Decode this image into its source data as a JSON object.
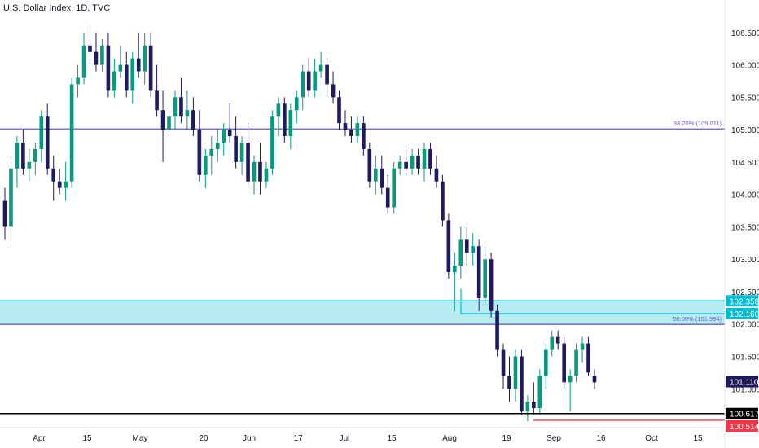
{
  "title": "U.S. Dollar Index, 1D, TVC",
  "chart_data": {
    "type": "candlestick",
    "title": "U.S. Dollar Index, 1D, TVC",
    "ylim": [
      100.4,
      107.0
    ],
    "y_ticks": [
      "106.500",
      "106.000",
      "105.500",
      "105.000",
      "104.500",
      "104.000",
      "103.500",
      "103.000",
      "102.500",
      "102.000",
      "101.500",
      "101.000"
    ],
    "x_ticks": [
      "Apr",
      "15",
      "May",
      "20",
      "Jun",
      "17",
      "Jul",
      "15",
      "Aug",
      "19",
      "Sep",
      "16",
      "Oct",
      "15"
    ],
    "colors": {
      "up": "#089981",
      "down": "#1e1a5e",
      "fib": "#6a5acd",
      "zone": "#00bcd4",
      "support": "#000000",
      "low": "#f23645"
    },
    "fib_levels": [
      {
        "label": "38.20% (105.011)",
        "value": 105.011
      },
      {
        "label": "50.00% (101.994)",
        "value": 101.994
      }
    ],
    "zone": {
      "upper": "102.358",
      "lower": "102.160"
    },
    "support_line": "100.617",
    "low_line": "100.514",
    "last_price": "101.110",
    "candles": [
      [
        103.9,
        104.1,
        103.3,
        103.5
      ],
      [
        103.5,
        104.5,
        103.2,
        104.4
      ],
      [
        104.4,
        104.9,
        104.1,
        104.8
      ],
      [
        104.8,
        105.0,
        104.3,
        104.4
      ],
      [
        104.4,
        104.7,
        104.2,
        104.5
      ],
      [
        104.5,
        104.8,
        104.3,
        104.7
      ],
      [
        104.7,
        105.3,
        104.5,
        105.2
      ],
      [
        105.2,
        105.4,
        104.3,
        104.4
      ],
      [
        104.4,
        104.6,
        103.9,
        104.2
      ],
      [
        104.2,
        104.4,
        104.0,
        104.1
      ],
      [
        104.1,
        104.5,
        103.9,
        104.2
      ],
      [
        104.2,
        105.8,
        104.1,
        105.7
      ],
      [
        105.7,
        106.0,
        105.5,
        105.8
      ],
      [
        105.8,
        106.5,
        105.7,
        106.3
      ],
      [
        106.3,
        106.6,
        106.0,
        106.2
      ],
      [
        106.2,
        106.5,
        105.9,
        106.0
      ],
      [
        106.0,
        106.4,
        105.9,
        106.3
      ],
      [
        106.3,
        106.5,
        105.5,
        105.6
      ],
      [
        105.6,
        106.1,
        105.5,
        105.9
      ],
      [
        105.9,
        106.3,
        105.8,
        106.0
      ],
      [
        106.0,
        106.2,
        105.5,
        105.6
      ],
      [
        105.6,
        106.2,
        105.4,
        106.1
      ],
      [
        106.1,
        106.5,
        105.8,
        105.9
      ],
      [
        105.9,
        106.5,
        105.7,
        106.3
      ],
      [
        106.3,
        106.5,
        105.5,
        105.6
      ],
      [
        105.6,
        106.0,
        105.2,
        105.3
      ],
      [
        105.3,
        105.6,
        104.5,
        105.0
      ],
      [
        105.0,
        105.3,
        104.9,
        105.2
      ],
      [
        105.2,
        105.6,
        105.0,
        105.5
      ],
      [
        105.5,
        105.8,
        105.1,
        105.2
      ],
      [
        105.2,
        105.6,
        105.0,
        105.3
      ],
      [
        105.3,
        105.5,
        104.9,
        105.0
      ],
      [
        105.0,
        105.3,
        104.2,
        104.3
      ],
      [
        104.3,
        104.7,
        104.1,
        104.6
      ],
      [
        104.6,
        104.9,
        104.3,
        104.7
      ],
      [
        104.7,
        105.0,
        104.5,
        104.8
      ],
      [
        104.8,
        105.1,
        104.6,
        105.0
      ],
      [
        105.0,
        105.4,
        104.8,
        104.9
      ],
      [
        104.9,
        105.2,
        104.4,
        104.5
      ],
      [
        104.5,
        104.9,
        104.3,
        104.8
      ],
      [
        104.8,
        105.1,
        104.1,
        104.2
      ],
      [
        104.2,
        104.6,
        104.0,
        104.5
      ],
      [
        104.5,
        104.8,
        104.0,
        104.2
      ],
      [
        104.2,
        104.5,
        104.1,
        104.4
      ],
      [
        104.4,
        105.3,
        104.3,
        105.2
      ],
      [
        105.2,
        105.5,
        104.9,
        105.4
      ],
      [
        105.4,
        105.5,
        104.8,
        104.9
      ],
      [
        104.9,
        105.4,
        104.7,
        105.3
      ],
      [
        105.3,
        105.6,
        105.1,
        105.5
      ],
      [
        105.5,
        106.0,
        105.3,
        105.9
      ],
      [
        105.9,
        106.1,
        105.5,
        105.6
      ],
      [
        105.6,
        106.1,
        105.5,
        105.9
      ],
      [
        105.9,
        106.2,
        105.8,
        106.0
      ],
      [
        106.0,
        106.1,
        105.5,
        105.7
      ],
      [
        105.7,
        105.9,
        105.4,
        105.5
      ],
      [
        105.5,
        105.6,
        105.0,
        105.1
      ],
      [
        105.1,
        105.3,
        104.9,
        105.0
      ],
      [
        105.0,
        105.2,
        104.8,
        104.9
      ],
      [
        104.9,
        105.2,
        104.8,
        105.1
      ],
      [
        105.1,
        105.2,
        104.6,
        104.7
      ],
      [
        104.7,
        104.8,
        104.1,
        104.2
      ],
      [
        104.2,
        104.6,
        104.0,
        104.4
      ],
      [
        104.4,
        104.6,
        104.0,
        104.1
      ],
      [
        104.1,
        104.3,
        103.7,
        103.8
      ],
      [
        103.8,
        104.5,
        103.7,
        104.4
      ],
      [
        104.4,
        104.6,
        104.3,
        104.5
      ],
      [
        104.5,
        104.7,
        104.3,
        104.4
      ],
      [
        104.4,
        104.7,
        104.3,
        104.6
      ],
      [
        104.6,
        104.7,
        104.3,
        104.4
      ],
      [
        104.4,
        104.8,
        104.2,
        104.7
      ],
      [
        104.7,
        104.8,
        104.3,
        104.4
      ],
      [
        104.4,
        104.6,
        104.1,
        104.2
      ],
      [
        104.2,
        104.3,
        103.5,
        103.6
      ],
      [
        103.6,
        103.7,
        102.7,
        102.8
      ],
      [
        102.8,
        103.1,
        102.2,
        102.9
      ],
      [
        102.9,
        103.5,
        102.7,
        103.3
      ],
      [
        103.3,
        103.5,
        102.9,
        103.1
      ],
      [
        103.1,
        103.4,
        102.9,
        103.2
      ],
      [
        103.2,
        103.3,
        102.2,
        102.4
      ],
      [
        102.4,
        103.2,
        102.3,
        103.0
      ],
      [
        103.0,
        103.1,
        102.1,
        102.2
      ],
      [
        102.2,
        102.3,
        101.5,
        101.6
      ],
      [
        101.6,
        101.7,
        101.0,
        101.2
      ],
      [
        101.2,
        101.5,
        100.8,
        101.0
      ],
      [
        101.0,
        101.6,
        100.8,
        101.5
      ],
      [
        101.5,
        101.6,
        100.6,
        100.65
      ],
      [
        100.65,
        100.9,
        100.5,
        100.8
      ],
      [
        100.8,
        101.1,
        100.6,
        100.7
      ],
      [
        100.7,
        101.3,
        100.6,
        101.2
      ],
      [
        101.2,
        101.7,
        101.0,
        101.6
      ],
      [
        101.6,
        101.9,
        101.5,
        101.8
      ],
      [
        101.8,
        101.9,
        101.6,
        101.7
      ],
      [
        101.7,
        101.8,
        101.0,
        101.1
      ],
      [
        101.1,
        101.3,
        100.65,
        101.2
      ],
      [
        101.2,
        101.7,
        101.1,
        101.6
      ],
      [
        101.6,
        101.8,
        101.4,
        101.7
      ],
      [
        101.7,
        101.8,
        101.2,
        101.25
      ],
      [
        101.2,
        101.3,
        101.0,
        101.1
      ]
    ]
  }
}
